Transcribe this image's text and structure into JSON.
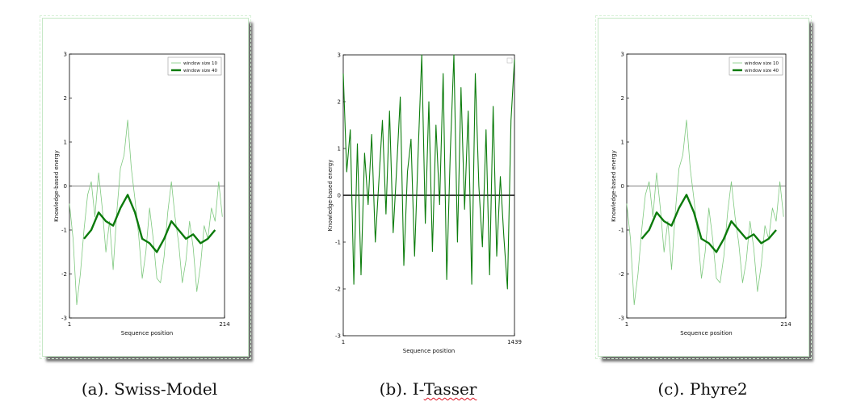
{
  "chart_data": [
    {
      "type": "line",
      "caption_label": "(a). Swiss-Model",
      "xlabel": "Sequence position",
      "ylabel": "Knowledge-based energy",
      "ylim": [
        -3,
        3
      ],
      "xlim": [
        1,
        214
      ],
      "y_ticks": [
        "-3",
        "-2",
        "-1",
        "0",
        "1",
        "2",
        "3"
      ],
      "x_ticks": [
        "1",
        "214"
      ],
      "legend": {
        "placement": "top-right",
        "entries": [
          "window size 10",
          "window size 40"
        ]
      },
      "series": [
        {
          "name": "window size 10",
          "x": [
            1,
            6,
            11,
            16,
            21,
            26,
            31,
            36,
            41,
            46,
            51,
            56,
            61,
            66,
            71,
            76,
            81,
            86,
            91,
            96,
            101,
            106,
            111,
            116,
            121,
            126,
            131,
            136,
            141,
            146,
            151,
            156,
            161,
            166,
            171,
            176,
            181,
            186,
            191,
            196,
            201,
            206,
            211
          ],
          "values": [
            -0.4,
            -1.2,
            -2.7,
            -2.0,
            -1.0,
            -0.2,
            0.1,
            -0.7,
            0.3,
            -0.5,
            -1.5,
            -0.8,
            -1.9,
            -0.6,
            0.4,
            0.7,
            1.5,
            0.4,
            -0.3,
            -1.1,
            -2.1,
            -1.5,
            -0.5,
            -1.2,
            -2.1,
            -2.2,
            -1.6,
            -0.6,
            0.1,
            -0.7,
            -1.3,
            -2.2,
            -1.7,
            -0.8,
            -1.4,
            -2.4,
            -1.8,
            -0.9,
            -1.2,
            -0.5,
            -0.8,
            0.1,
            -0.7
          ]
        },
        {
          "name": "window size 40",
          "x": [
            21,
            31,
            41,
            51,
            61,
            71,
            81,
            91,
            101,
            111,
            121,
            131,
            141,
            151,
            161,
            171,
            181,
            191,
            201
          ],
          "values": [
            -1.2,
            -1.0,
            -0.6,
            -0.8,
            -0.9,
            -0.5,
            -0.2,
            -0.6,
            -1.2,
            -1.3,
            -1.5,
            -1.2,
            -0.8,
            -1.0,
            -1.2,
            -1.1,
            -1.3,
            -1.2,
            -1.0
          ]
        }
      ]
    },
    {
      "type": "line",
      "caption_label": "(b). I-Tasser",
      "xlabel": "Sequence position",
      "ylabel": "Knowledge-based energy",
      "ylim": [
        -3,
        3
      ],
      "xlim": [
        1,
        1439
      ],
      "y_ticks": [
        "-3",
        "-2",
        "-1",
        "0",
        "1",
        "2",
        "3"
      ],
      "x_ticks": [
        "1",
        "1439"
      ],
      "legend": {
        "placement": "top-right",
        "entries": []
      },
      "series": [
        {
          "name": "",
          "x": [
            1,
            30,
            60,
            90,
            120,
            150,
            180,
            210,
            240,
            270,
            300,
            330,
            360,
            390,
            420,
            450,
            480,
            510,
            540,
            570,
            600,
            630,
            660,
            690,
            720,
            750,
            780,
            810,
            840,
            870,
            900,
            930,
            960,
            990,
            1020,
            1050,
            1080,
            1110,
            1140,
            1170,
            1200,
            1230,
            1260,
            1290,
            1320,
            1350,
            1380,
            1410,
            1439
          ],
          "values": [
            2.6,
            0.5,
            1.4,
            -1.9,
            1.1,
            -1.7,
            0.9,
            -0.2,
            1.3,
            -1.0,
            0.3,
            1.6,
            -0.4,
            1.8,
            -0.8,
            0.6,
            2.1,
            -1.5,
            0.5,
            1.2,
            -1.3,
            0.9,
            3.0,
            -0.6,
            2.0,
            -1.2,
            1.5,
            -0.2,
            2.6,
            -1.8,
            0.9,
            3.0,
            -1.0,
            2.3,
            -0.3,
            1.8,
            -1.9,
            2.6,
            0.2,
            -1.1,
            1.4,
            -1.7,
            1.9,
            -1.3,
            0.4,
            -0.9,
            -2.0,
            1.6,
            2.9
          ]
        }
      ]
    },
    {
      "type": "line",
      "caption_label": "(c). Phyre2",
      "xlabel": "Sequence position",
      "ylabel": "Knowledge-based energy",
      "ylim": [
        -3,
        3
      ],
      "xlim": [
        1,
        214
      ],
      "y_ticks": [
        "-3",
        "-2",
        "-1",
        "0",
        "1",
        "2",
        "3"
      ],
      "x_ticks": [
        "1",
        "214"
      ],
      "legend": {
        "placement": "top-right",
        "entries": [
          "window size 10",
          "window size 40"
        ]
      },
      "series": [
        {
          "name": "window size 10",
          "x": [
            1,
            6,
            11,
            16,
            21,
            26,
            31,
            36,
            41,
            46,
            51,
            56,
            61,
            66,
            71,
            76,
            81,
            86,
            91,
            96,
            101,
            106,
            111,
            116,
            121,
            126,
            131,
            136,
            141,
            146,
            151,
            156,
            161,
            166,
            171,
            176,
            181,
            186,
            191,
            196,
            201,
            206,
            211
          ],
          "values": [
            -0.4,
            -1.2,
            -2.7,
            -2.0,
            -1.0,
            -0.2,
            0.1,
            -0.7,
            0.3,
            -0.5,
            -1.5,
            -0.8,
            -1.9,
            -0.6,
            0.4,
            0.7,
            1.5,
            0.4,
            -0.3,
            -1.1,
            -2.1,
            -1.5,
            -0.5,
            -1.2,
            -2.1,
            -2.2,
            -1.6,
            -0.6,
            0.1,
            -0.7,
            -1.3,
            -2.2,
            -1.7,
            -0.8,
            -1.4,
            -2.4,
            -1.8,
            -0.9,
            -1.2,
            -0.5,
            -0.8,
            0.1,
            -0.7
          ]
        },
        {
          "name": "window size 40",
          "x": [
            21,
            31,
            41,
            51,
            61,
            71,
            81,
            91,
            101,
            111,
            121,
            131,
            141,
            151,
            161,
            171,
            181,
            191,
            201
          ],
          "values": [
            -1.2,
            -1.0,
            -0.6,
            -0.8,
            -0.9,
            -0.5,
            -0.2,
            -0.6,
            -1.2,
            -1.3,
            -1.5,
            -1.2,
            -0.8,
            -1.0,
            -1.2,
            -1.1,
            -1.3,
            -1.2,
            -1.0
          ]
        }
      ]
    }
  ]
}
